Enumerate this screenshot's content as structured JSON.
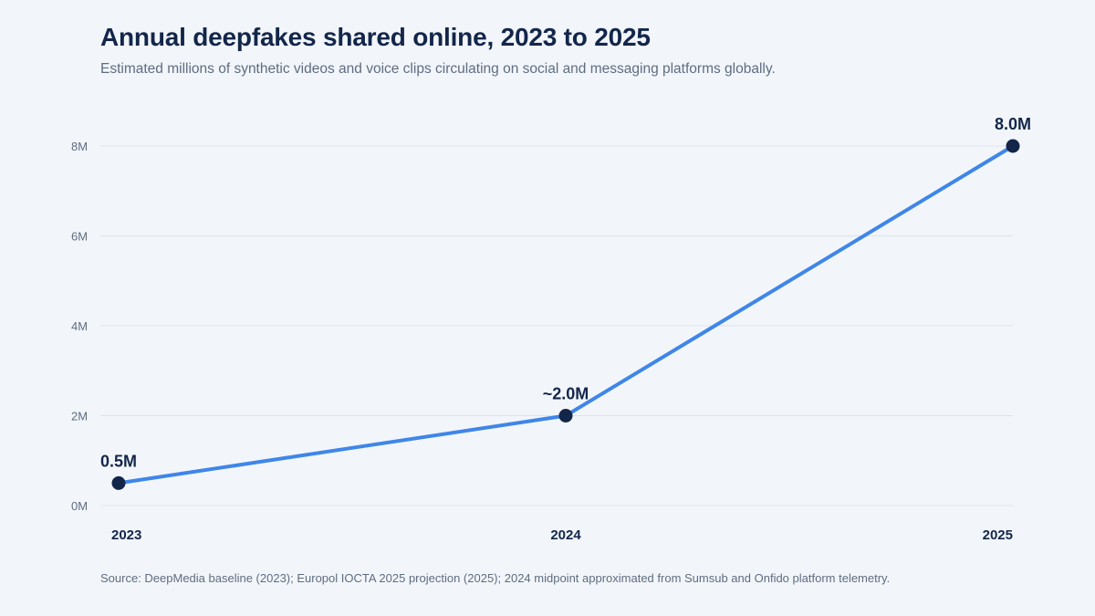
{
  "chart_data": {
    "type": "line",
    "title": "Annual deepfakes shared online, 2023 to 2025",
    "subtitle": "Estimated millions of synthetic videos and voice clips circulating on social and messaging platforms globally.",
    "source": "Source: DeepMedia baseline (2023); Europol IOCTA 2025 projection (2025); 2024 midpoint approximated from Sumsub and Onfido platform telemetry.",
    "categories": [
      "2023",
      "2024",
      "2025"
    ],
    "series": [
      {
        "values": [
          0.5,
          2.0,
          8.0
        ],
        "data_labels": [
          "0.5M",
          "~2.0M",
          "8.0M"
        ],
        "color": "#3f86e8",
        "marker_color": "#13264a"
      }
    ],
    "ylim": [
      0,
      8
    ],
    "yticks": [
      0,
      2,
      4,
      6,
      8
    ],
    "ytick_labels": [
      "0M",
      "2M",
      "4M",
      "6M",
      "8M"
    ],
    "grid": true,
    "xlabel": "",
    "ylabel": ""
  }
}
